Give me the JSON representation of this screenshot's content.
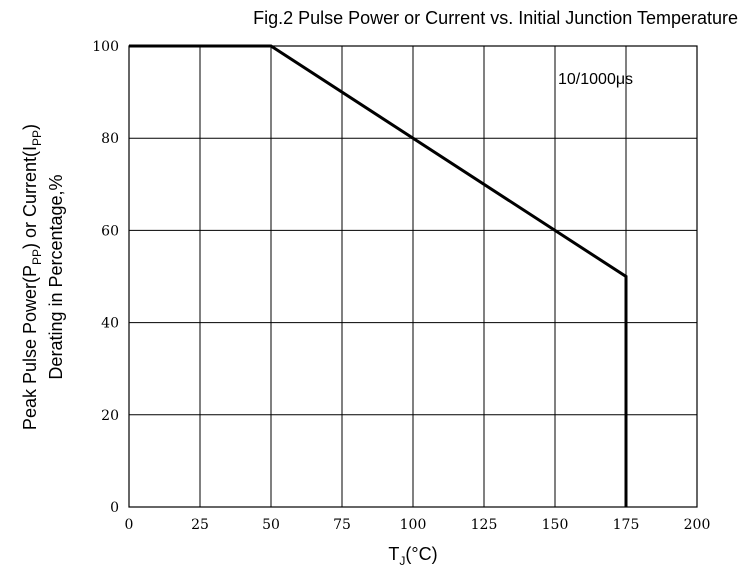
{
  "chart_data": {
    "type": "line",
    "title": "Fig.2 Pulse Power or Current vs. Initial Junction Temperature",
    "xlabel": {
      "main": "T",
      "sub": "J",
      "tail": "(°C)"
    },
    "ylabel_line1": {
      "a": "Peak Pulse Power(P",
      "a_sub": "PP",
      "b": ") or Current(I",
      "b_sub": "PP",
      "c": ")"
    },
    "ylabel_line2": "Derating in Percentage,%",
    "xlim": [
      0,
      200
    ],
    "ylim": [
      0,
      100
    ],
    "x_ticks": [
      0,
      25,
      50,
      75,
      100,
      125,
      150,
      175,
      200
    ],
    "y_ticks": [
      0,
      20,
      40,
      60,
      80,
      100
    ],
    "grid": true,
    "annotation": "10/1000μs",
    "series": [
      {
        "x": [
          0,
          50,
          175,
          175
        ],
        "y": [
          100,
          100,
          50,
          0
        ]
      }
    ]
  }
}
